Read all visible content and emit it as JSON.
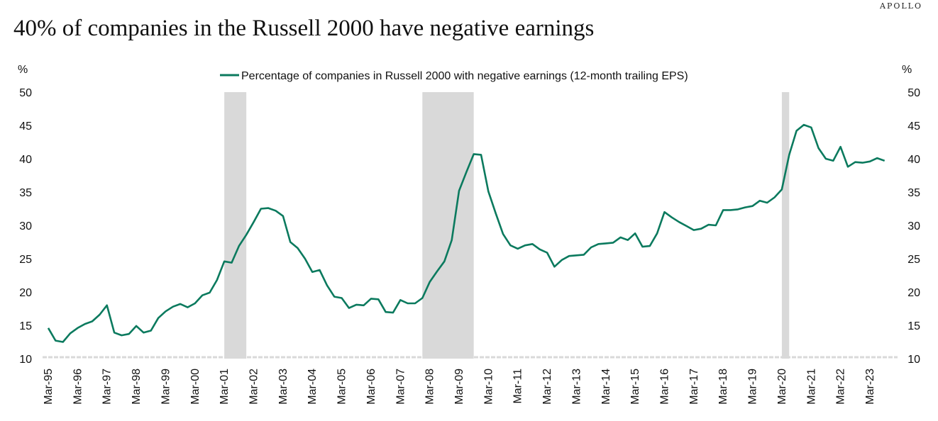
{
  "brand": "APOLLO",
  "title": "40% of companies in the Russell 2000 have negative earnings",
  "colors": {
    "line": "#0b7a5e",
    "recession": "#d9d9d9",
    "baseline": "#d9d9d9"
  },
  "chart_data": {
    "type": "line",
    "title": "40% of companies in the Russell 2000 have negative earnings",
    "ylabel_left": "%",
    "ylabel_right": "%",
    "ylim": [
      10,
      50
    ],
    "yticks": [
      10,
      15,
      20,
      25,
      30,
      35,
      40,
      45,
      50
    ],
    "xlim": [
      1995.17,
      2023.92
    ],
    "xticks": [
      {
        "label": "Mar-95",
        "x": 1995.17
      },
      {
        "label": "Mar-96",
        "x": 1996.17
      },
      {
        "label": "Mar-97",
        "x": 1997.17
      },
      {
        "label": "Mar-98",
        "x": 1998.17
      },
      {
        "label": "Mar-99",
        "x": 1999.17
      },
      {
        "label": "Mar-00",
        "x": 2000.17
      },
      {
        "label": "Mar-01",
        "x": 2001.17
      },
      {
        "label": "Mar-02",
        "x": 2002.17
      },
      {
        "label": "Mar-03",
        "x": 2003.17
      },
      {
        "label": "Mar-04",
        "x": 2004.17
      },
      {
        "label": "Mar-05",
        "x": 2005.17
      },
      {
        "label": "Mar-06",
        "x": 2006.17
      },
      {
        "label": "Mar-07",
        "x": 2007.17
      },
      {
        "label": "Mar-08",
        "x": 2008.17
      },
      {
        "label": "Mar-09",
        "x": 2009.17
      },
      {
        "label": "Mar-10",
        "x": 2010.17
      },
      {
        "label": "Mar-11",
        "x": 2011.17
      },
      {
        "label": "Mar-12",
        "x": 2012.17
      },
      {
        "label": "Mar-13",
        "x": 2013.17
      },
      {
        "label": "Mar-14",
        "x": 2014.17
      },
      {
        "label": "Mar-15",
        "x": 2015.17
      },
      {
        "label": "Mar-16",
        "x": 2016.17
      },
      {
        "label": "Mar-17",
        "x": 2017.17
      },
      {
        "label": "Mar-18",
        "x": 2018.17
      },
      {
        "label": "Mar-19",
        "x": 2019.17
      },
      {
        "label": "Mar-20",
        "x": 2020.17
      },
      {
        "label": "Mar-21",
        "x": 2021.17
      },
      {
        "label": "Mar-22",
        "x": 2022.17
      },
      {
        "label": "Mar-23",
        "x": 2023.17
      }
    ],
    "recessions": [
      {
        "start": 2001.17,
        "end": 2001.92
      },
      {
        "start": 2007.92,
        "end": 2009.67
      },
      {
        "start": 2020.17,
        "end": 2020.42
      }
    ],
    "legend_position": "top-center",
    "series": [
      {
        "name": "Percentage of companies in Russell 2000 with negative earnings (12-month trailing EPS)",
        "x": [
          1995.17,
          1995.42,
          1995.67,
          1995.92,
          1996.17,
          1996.42,
          1996.67,
          1996.92,
          1997.17,
          1997.42,
          1997.67,
          1997.92,
          1998.17,
          1998.42,
          1998.67,
          1998.92,
          1999.17,
          1999.42,
          1999.67,
          1999.92,
          2000.17,
          2000.42,
          2000.67,
          2000.92,
          2001.17,
          2001.42,
          2001.67,
          2001.92,
          2002.17,
          2002.42,
          2002.67,
          2002.92,
          2003.17,
          2003.42,
          2003.67,
          2003.92,
          2004.17,
          2004.42,
          2004.67,
          2004.92,
          2005.17,
          2005.42,
          2005.67,
          2005.92,
          2006.17,
          2006.42,
          2006.67,
          2006.92,
          2007.17,
          2007.42,
          2007.67,
          2007.92,
          2008.17,
          2008.42,
          2008.67,
          2008.92,
          2009.17,
          2009.42,
          2009.67,
          2009.92,
          2010.17,
          2010.42,
          2010.67,
          2010.92,
          2011.17,
          2011.42,
          2011.67,
          2011.92,
          2012.17,
          2012.42,
          2012.67,
          2012.92,
          2013.17,
          2013.42,
          2013.67,
          2013.92,
          2014.17,
          2014.42,
          2014.67,
          2014.92,
          2015.17,
          2015.42,
          2015.67,
          2015.92,
          2016.17,
          2016.42,
          2016.67,
          2016.92,
          2017.17,
          2017.42,
          2017.67,
          2017.92,
          2018.17,
          2018.42,
          2018.67,
          2018.92,
          2019.17,
          2019.42,
          2019.67,
          2019.92,
          2020.17,
          2020.42,
          2020.67,
          2020.92,
          2021.17,
          2021.42,
          2021.67,
          2021.92,
          2022.17,
          2022.42,
          2022.67,
          2022.92,
          2023.17,
          2023.42,
          2023.67
        ],
        "values": [
          14.6,
          12.7,
          12.5,
          13.8,
          14.6,
          15.2,
          15.6,
          16.6,
          18.0,
          13.9,
          13.5,
          13.7,
          14.9,
          13.9,
          14.2,
          16.1,
          17.1,
          17.8,
          18.2,
          17.7,
          18.3,
          19.5,
          19.9,
          21.8,
          24.6,
          24.4,
          26.9,
          28.6,
          30.5,
          32.5,
          32.6,
          32.2,
          31.4,
          27.5,
          26.6,
          25.0,
          23.0,
          23.3,
          21.0,
          19.3,
          19.1,
          17.6,
          18.1,
          18.0,
          19.0,
          18.9,
          17.0,
          16.9,
          18.8,
          18.3,
          18.3,
          19.1,
          21.5,
          23.1,
          24.6,
          27.8,
          35.2,
          38.0,
          40.7,
          40.6,
          35.1,
          31.8,
          28.7,
          27.0,
          26.5,
          27.0,
          27.2,
          26.4,
          25.9,
          23.8,
          24.8,
          25.4,
          25.5,
          25.6,
          26.7,
          27.2,
          27.3,
          27.4,
          28.2,
          27.8,
          28.8,
          26.8,
          26.9,
          28.8,
          32.0,
          31.2,
          30.5,
          29.9,
          29.3,
          29.5,
          30.1,
          30.0,
          32.3,
          32.3,
          32.4,
          32.7,
          32.9,
          33.7,
          33.4,
          34.2,
          35.4,
          40.6,
          44.2,
          45.1,
          44.7,
          41.6,
          40.0,
          39.7,
          41.8,
          38.8,
          39.5,
          39.4,
          39.6,
          40.1,
          39.7
        ]
      }
    ]
  }
}
